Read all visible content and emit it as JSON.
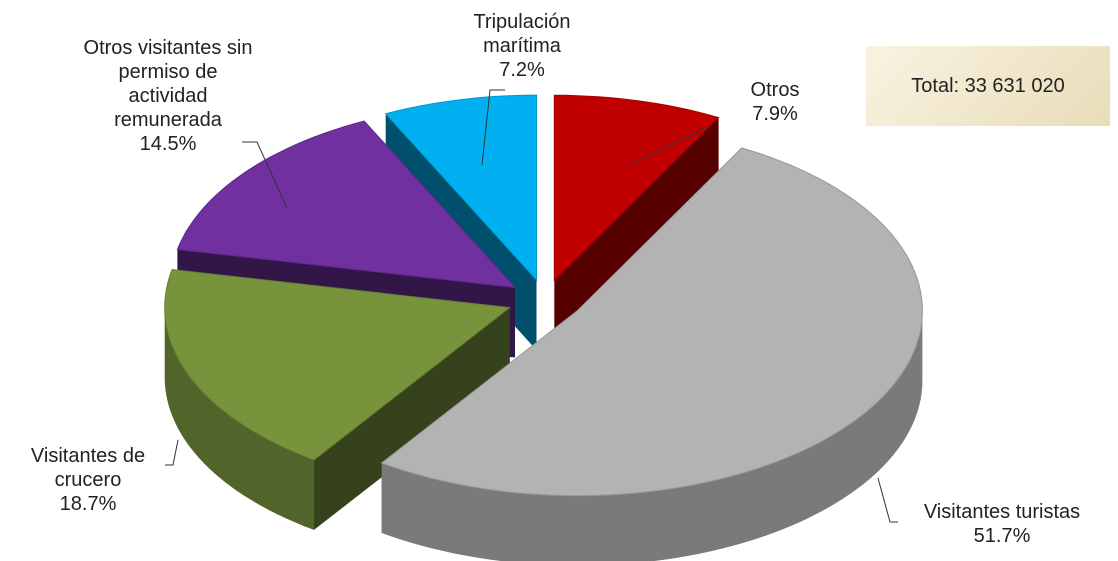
{
  "chart_data": {
    "type": "pie3d",
    "categories": [
      "Otros",
      "Visitantes turistas",
      "Visitantes de crucero",
      "Otros visitantes sin permiso de actividad remunerada",
      "Tripulación marítima"
    ],
    "values": [
      7.9,
      51.7,
      18.7,
      14.5,
      7.2
    ],
    "value_labels": [
      "7.9%",
      "51.7%",
      "18.7%",
      "14.5%",
      "7.2%"
    ],
    "colors": [
      "#c00000",
      "#b3b3b3",
      "#77933c",
      "#7030a0",
      "#00b0f0"
    ],
    "annotation": "Total: 33 631 020"
  }
}
